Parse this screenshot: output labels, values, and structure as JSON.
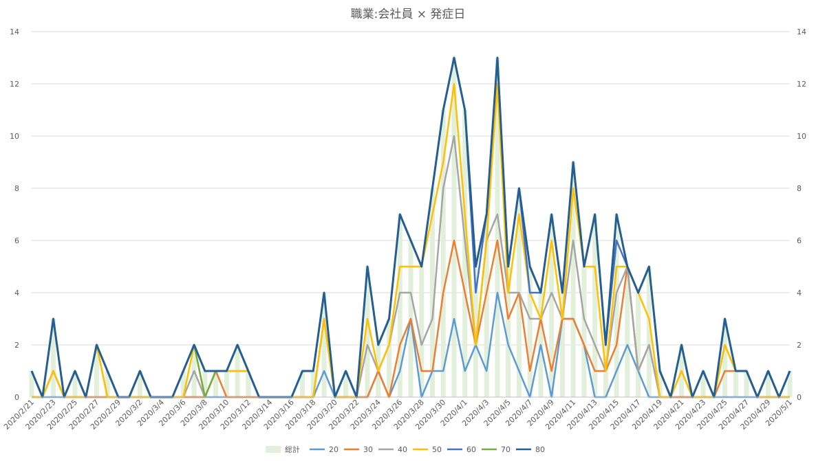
{
  "chart_data": {
    "type": "bar+line",
    "title": "職業:会社員 × 発症日",
    "y_ticks": [
      "0",
      "2",
      "4",
      "6",
      "8",
      "10",
      "12",
      "14"
    ],
    "ylim": [
      0,
      14
    ],
    "grid": true,
    "legend_position": "bottom",
    "x": [
      "2020/2/21",
      "2020/2/22",
      "2020/2/23",
      "2020/2/24",
      "2020/2/25",
      "2020/2/26",
      "2020/2/27",
      "2020/2/28",
      "2020/2/29",
      "2020/3/1",
      "2020/3/2",
      "2020/3/3",
      "2020/3/4",
      "2020/3/5",
      "2020/3/6",
      "2020/3/7",
      "2020/3/8",
      "2020/3/9",
      "2020/3/10",
      "2020/3/11",
      "2020/3/12",
      "2020/3/13",
      "2020/3/14",
      "2020/3/15",
      "2020/3/16",
      "2020/3/17",
      "2020/3/18",
      "2020/3/19",
      "2020/3/20",
      "2020/3/21",
      "2020/3/22",
      "2020/3/23",
      "2020/3/24",
      "2020/3/25",
      "2020/3/26",
      "2020/3/27",
      "2020/3/28",
      "2020/3/29",
      "2020/3/30",
      "2020/3/31",
      "2020/4/1",
      "2020/4/2",
      "2020/4/3",
      "2020/4/4",
      "2020/4/5",
      "2020/4/6",
      "2020/4/7",
      "2020/4/8",
      "2020/4/9",
      "2020/4/10",
      "2020/4/11",
      "2020/4/12",
      "2020/4/13",
      "2020/4/14",
      "2020/4/15",
      "2020/4/16",
      "2020/4/17",
      "2020/4/18",
      "2020/4/19",
      "2020/4/20",
      "2020/4/21",
      "2020/4/22",
      "2020/4/23",
      "2020/4/24",
      "2020/4/25",
      "2020/4/26",
      "2020/4/27",
      "2020/4/28",
      "2020/4/29",
      "2020/4/30",
      "2020/5/1"
    ],
    "x_tick_labels": [
      "2020/2/21",
      "2020/2/23",
      "2020/2/25",
      "2020/2/27",
      "2020/2/29",
      "2020/3/2",
      "2020/3/4",
      "2020/3/6",
      "2020/3/8",
      "2020/3/10",
      "2020/3/12",
      "2020/3/14",
      "2020/3/16",
      "2020/3/18",
      "2020/3/20",
      "2020/3/22",
      "2020/3/24",
      "2020/3/26",
      "2020/3/28",
      "2020/3/30",
      "2020/4/1",
      "2020/4/3",
      "2020/4/5",
      "2020/4/7",
      "2020/4/9",
      "2020/4/11",
      "2020/4/13",
      "2020/4/15",
      "2020/4/17",
      "2020/4/19",
      "2020/4/21",
      "2020/4/23",
      "2020/4/25",
      "2020/4/27",
      "2020/4/29",
      "2020/5/1"
    ],
    "bar_series": {
      "name": "総計",
      "color": "#e2efda",
      "values": [
        1,
        0,
        3,
        0,
        1,
        0,
        2,
        1,
        0,
        0,
        1,
        0,
        0,
        0,
        1,
        2,
        1,
        1,
        1,
        2,
        1,
        0,
        0,
        0,
        0,
        1,
        1,
        4,
        0,
        1,
        0,
        5,
        2,
        3,
        7,
        6,
        5,
        8,
        11,
        13,
        11,
        5,
        7,
        13,
        5,
        8,
        5,
        4,
        7,
        4,
        9,
        5,
        7,
        2,
        7,
        5,
        4,
        5,
        1,
        0,
        2,
        0,
        1,
        0,
        3,
        1,
        1,
        0,
        1,
        0,
        1
      ]
    },
    "series": [
      {
        "name": "20",
        "color": "#5b9bd5",
        "values": [
          0,
          0,
          0,
          0,
          0,
          0,
          0,
          0,
          0,
          0,
          0,
          0,
          0,
          0,
          0,
          0,
          0,
          0,
          0,
          0,
          0,
          0,
          0,
          0,
          0,
          0,
          0,
          1,
          0,
          0,
          0,
          0,
          1,
          0,
          1,
          3,
          0,
          1,
          1,
          3,
          1,
          2,
          1,
          4,
          2,
          1,
          0,
          2,
          0,
          3,
          3,
          2,
          0,
          0,
          1,
          2,
          1,
          0,
          0,
          0,
          0,
          0,
          0,
          0,
          0,
          0,
          0,
          0,
          0,
          0,
          0
        ]
      },
      {
        "name": "30",
        "color": "#ed7d31",
        "values": [
          0,
          0,
          1,
          0,
          0,
          0,
          0,
          0,
          0,
          0,
          0,
          0,
          0,
          0,
          0,
          0,
          0,
          1,
          0,
          0,
          0,
          0,
          0,
          0,
          0,
          0,
          0,
          3,
          0,
          0,
          0,
          0,
          1,
          0,
          2,
          3,
          1,
          1,
          4,
          6,
          4,
          2,
          4,
          6,
          3,
          4,
          1,
          3,
          1,
          3,
          3,
          2,
          1,
          1,
          2,
          5,
          1,
          2,
          0,
          0,
          0,
          0,
          0,
          0,
          1,
          1,
          1,
          0,
          0,
          0,
          0
        ]
      },
      {
        "name": "40",
        "color": "#a5a5a5",
        "values": [
          0,
          0,
          1,
          0,
          0,
          0,
          2,
          0,
          0,
          0,
          0,
          0,
          0,
          0,
          0,
          1,
          0,
          1,
          1,
          1,
          1,
          0,
          0,
          0,
          0,
          0,
          0,
          3,
          0,
          0,
          0,
          2,
          1,
          2,
          4,
          4,
          2,
          3,
          8,
          10,
          6,
          2,
          6,
          7,
          4,
          4,
          3,
          3,
          4,
          3,
          6,
          3,
          2,
          1,
          4,
          5,
          1,
          2,
          0,
          0,
          1,
          0,
          0,
          0,
          2,
          1,
          1,
          0,
          0,
          0,
          0
        ]
      },
      {
        "name": "50",
        "color": "#ffc000",
        "values": [
          0,
          0,
          1,
          0,
          0,
          0,
          2,
          0,
          0,
          0,
          0,
          0,
          0,
          0,
          0,
          2,
          0,
          1,
          1,
          1,
          1,
          0,
          0,
          0,
          0,
          0,
          0,
          3,
          0,
          0,
          0,
          3,
          1,
          2,
          5,
          5,
          5,
          7,
          9,
          12,
          7,
          2,
          6,
          12,
          4,
          7,
          4,
          3,
          6,
          3,
          8,
          5,
          5,
          1,
          5,
          5,
          4,
          3,
          0,
          0,
          1,
          0,
          0,
          0,
          2,
          1,
          1,
          0,
          0,
          0,
          0
        ]
      },
      {
        "name": "60",
        "color": "#4472c4",
        "values": [
          1,
          0,
          3,
          0,
          1,
          0,
          2,
          1,
          0,
          0,
          1,
          0,
          0,
          0,
          1,
          2,
          1,
          1,
          1,
          2,
          1,
          0,
          0,
          0,
          0,
          1,
          1,
          4,
          0,
          1,
          0,
          5,
          2,
          3,
          7,
          6,
          5,
          8,
          11,
          13,
          11,
          4,
          7,
          13,
          5,
          8,
          4,
          4,
          7,
          4,
          9,
          5,
          7,
          2,
          6,
          5,
          4,
          5,
          1,
          0,
          2,
          0,
          1,
          0,
          3,
          1,
          1,
          0,
          1,
          0,
          1
        ]
      },
      {
        "name": "70",
        "color": "#70ad47",
        "values": [
          1,
          0,
          3,
          0,
          1,
          0,
          2,
          1,
          0,
          0,
          1,
          0,
          0,
          0,
          1,
          2,
          0,
          1,
          1,
          2,
          1,
          0,
          0,
          0,
          0,
          1,
          1,
          4,
          0,
          1,
          0,
          5,
          2,
          3,
          7,
          6,
          5,
          8,
          11,
          13,
          11,
          5,
          7,
          13,
          5,
          8,
          5,
          4,
          7,
          4,
          9,
          5,
          7,
          2,
          7,
          5,
          4,
          5,
          1,
          0,
          2,
          0,
          1,
          0,
          3,
          1,
          1,
          0,
          1,
          0,
          1
        ]
      },
      {
        "name": "80",
        "color": "#255e91",
        "values": [
          1,
          0,
          3,
          0,
          1,
          0,
          2,
          1,
          0,
          0,
          1,
          0,
          0,
          0,
          1,
          2,
          1,
          1,
          1,
          2,
          1,
          0,
          0,
          0,
          0,
          1,
          1,
          4,
          0,
          1,
          0,
          5,
          2,
          3,
          7,
          6,
          5,
          8,
          11,
          13,
          11,
          5,
          7,
          13,
          5,
          8,
          5,
          4,
          7,
          4,
          9,
          5,
          7,
          2,
          7,
          5,
          4,
          5,
          1,
          0,
          2,
          0,
          1,
          0,
          3,
          1,
          1,
          0,
          1,
          0,
          1
        ]
      }
    ]
  }
}
